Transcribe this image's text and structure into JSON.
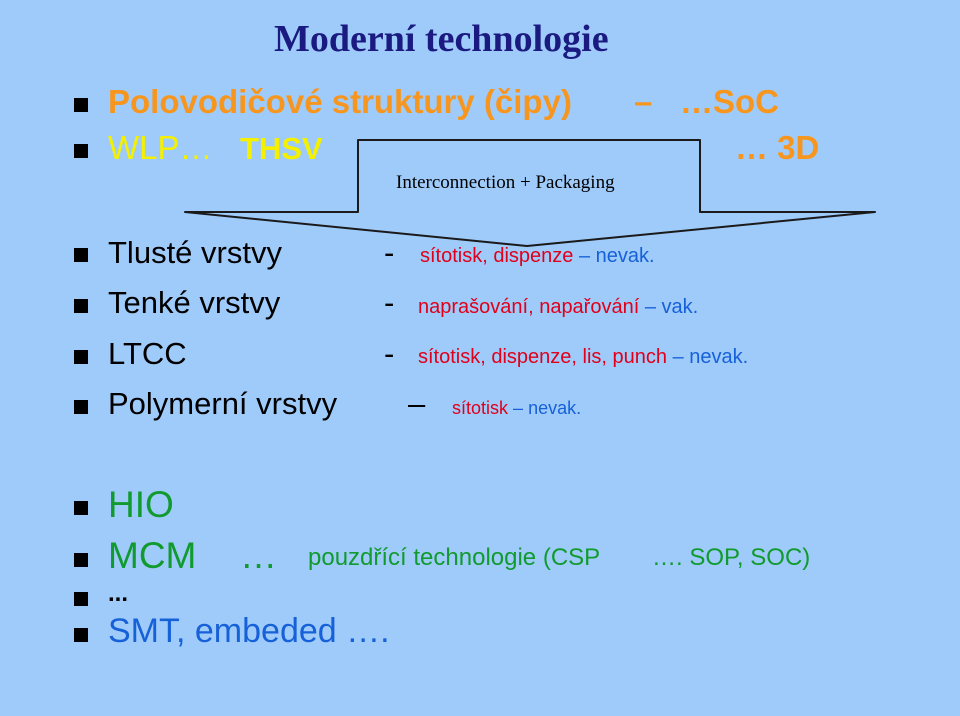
{
  "slide": {
    "title": "Moderní technologie",
    "line1": {
      "text": "Polovodičové struktury (čipy)",
      "dash": "–",
      "soc": "…SoC"
    },
    "line2": {
      "wlp": "WLP…",
      "thsv": "THSV",
      "threeD": "… 3D"
    },
    "callout": "Interconnection + Packaging",
    "rows": [
      {
        "label": "Tlusté vrstvy",
        "sep": "-",
        "desc_red": "sítotisk, dispenze",
        "desc_dash": "–",
        "desc_blue": "nevak."
      },
      {
        "label": "Tenké vrstvy",
        "sep": "-",
        "desc_red": "naprašování, napařování",
        "desc_dash": "–",
        "desc_blue": "vak."
      },
      {
        "label": "LTCC",
        "sep": "-",
        "desc_red": "sítotisk, dispenze, lis, punch",
        "desc_dash": "–",
        "desc_blue": "nevak."
      },
      {
        "label": "Polymerní vrstvy",
        "sep": "–",
        "desc_red": "sítotisk",
        "desc_dash": "–",
        "desc_blue": "nevak."
      }
    ],
    "hio": "HIO",
    "mcm": {
      "label": "MCM",
      "dots": "…",
      "desc": "pouzdřící technologie (CSP",
      "tail": "…. SOP, SOC)"
    },
    "ellipsis": "...",
    "smt": "SMT, embeded ….",
    "colors": {
      "background": "#9fcbfb",
      "title": "#1a1a80",
      "orange": "#f7961e",
      "yellow": "#f4f000",
      "red": "#e0001a",
      "blue": "#1660d8",
      "green": "#119a2e",
      "black": "#000000"
    }
  }
}
